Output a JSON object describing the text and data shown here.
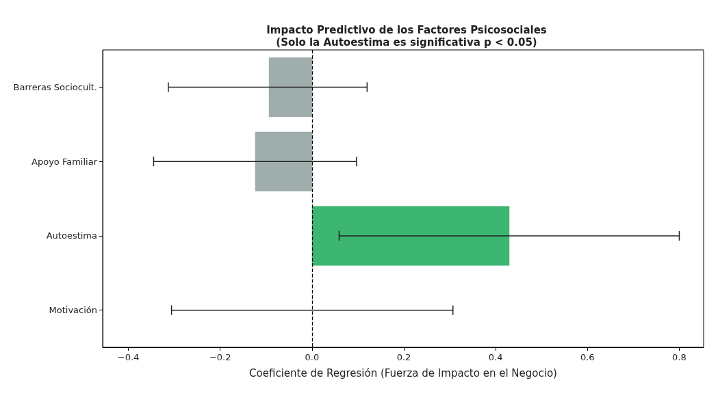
{
  "chart_data": {
    "type": "bar",
    "orientation": "horizontal",
    "title": "Impacto Predictivo de los Factores Psicosociales\n(Solo la Autoestima es significativa p < 0.05)",
    "xlabel": "Coeficiente de Regresión (Fuerza de Impacto en el Negocio)",
    "categories": [
      "Barreras Sociocult.",
      "Apoyo Familiar",
      "Autoestima",
      "Motivación"
    ],
    "values": [
      -0.094,
      -0.124,
      0.43,
      0.0
    ],
    "colors": [
      "#9fadad",
      "#9fadad",
      "#3cb671",
      "#9fadad"
    ],
    "errors": [
      [
        -0.313,
        0.12
      ],
      [
        -0.345,
        0.097
      ],
      [
        0.059,
        0.8
      ],
      [
        -0.306,
        0.307
      ]
    ],
    "xlim": [
      -0.456,
      0.853
    ],
    "xticks": [
      {
        "value": -0.4,
        "label": "−0.4"
      },
      {
        "value": -0.2,
        "label": "−0.2"
      },
      {
        "value": 0,
        "label": "0.0"
      },
      {
        "value": 0.2,
        "label": "0.2"
      },
      {
        "value": 0.4,
        "label": "0.4"
      },
      {
        "value": 0.6,
        "label": "0.6"
      },
      {
        "value": 0.8,
        "label": "0.8"
      }
    ],
    "ref_lines": [
      {
        "axis": "x",
        "value": 0,
        "color": "#000000",
        "line_style": "dashed"
      }
    ],
    "grid": false
  }
}
